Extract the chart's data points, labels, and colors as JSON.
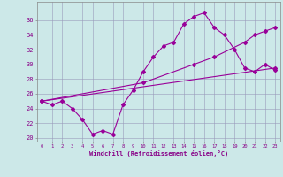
{
  "bg_color": "#cce8e8",
  "grid_color": "#9999bb",
  "line_color": "#990099",
  "xlabel": "Windchill (Refroidissement éolien,°C)",
  "xlim": [
    -0.5,
    23.5
  ],
  "ylim": [
    19.5,
    38.5
  ],
  "x_ticks": [
    0,
    1,
    2,
    3,
    4,
    5,
    6,
    7,
    8,
    9,
    10,
    11,
    12,
    13,
    14,
    15,
    16,
    17,
    18,
    19,
    20,
    21,
    22,
    23
  ],
  "y_ticks": [
    20,
    22,
    24,
    26,
    28,
    30,
    32,
    34,
    36
  ],
  "line1_x": [
    0,
    1,
    2,
    3,
    4,
    5,
    6,
    7,
    8,
    9,
    10,
    11,
    12,
    13,
    14,
    15,
    16,
    17,
    18,
    19,
    20,
    21,
    22,
    23
  ],
  "line1_y": [
    25.0,
    24.5,
    25.0,
    24.0,
    22.5,
    20.5,
    21.0,
    20.5,
    24.5,
    26.5,
    29.0,
    31.0,
    32.5,
    33.0,
    35.5,
    36.5,
    37.0,
    35.0,
    34.0,
    32.0,
    29.5,
    29.0,
    30.0,
    29.2
  ],
  "line2_x": [
    0,
    10,
    15,
    17,
    20,
    21,
    22,
    23
  ],
  "line2_y": [
    25.0,
    27.5,
    30.0,
    31.0,
    33.0,
    34.0,
    34.5,
    35.0
  ],
  "line3_x": [
    0,
    23
  ],
  "line3_y": [
    25.0,
    29.5
  ]
}
